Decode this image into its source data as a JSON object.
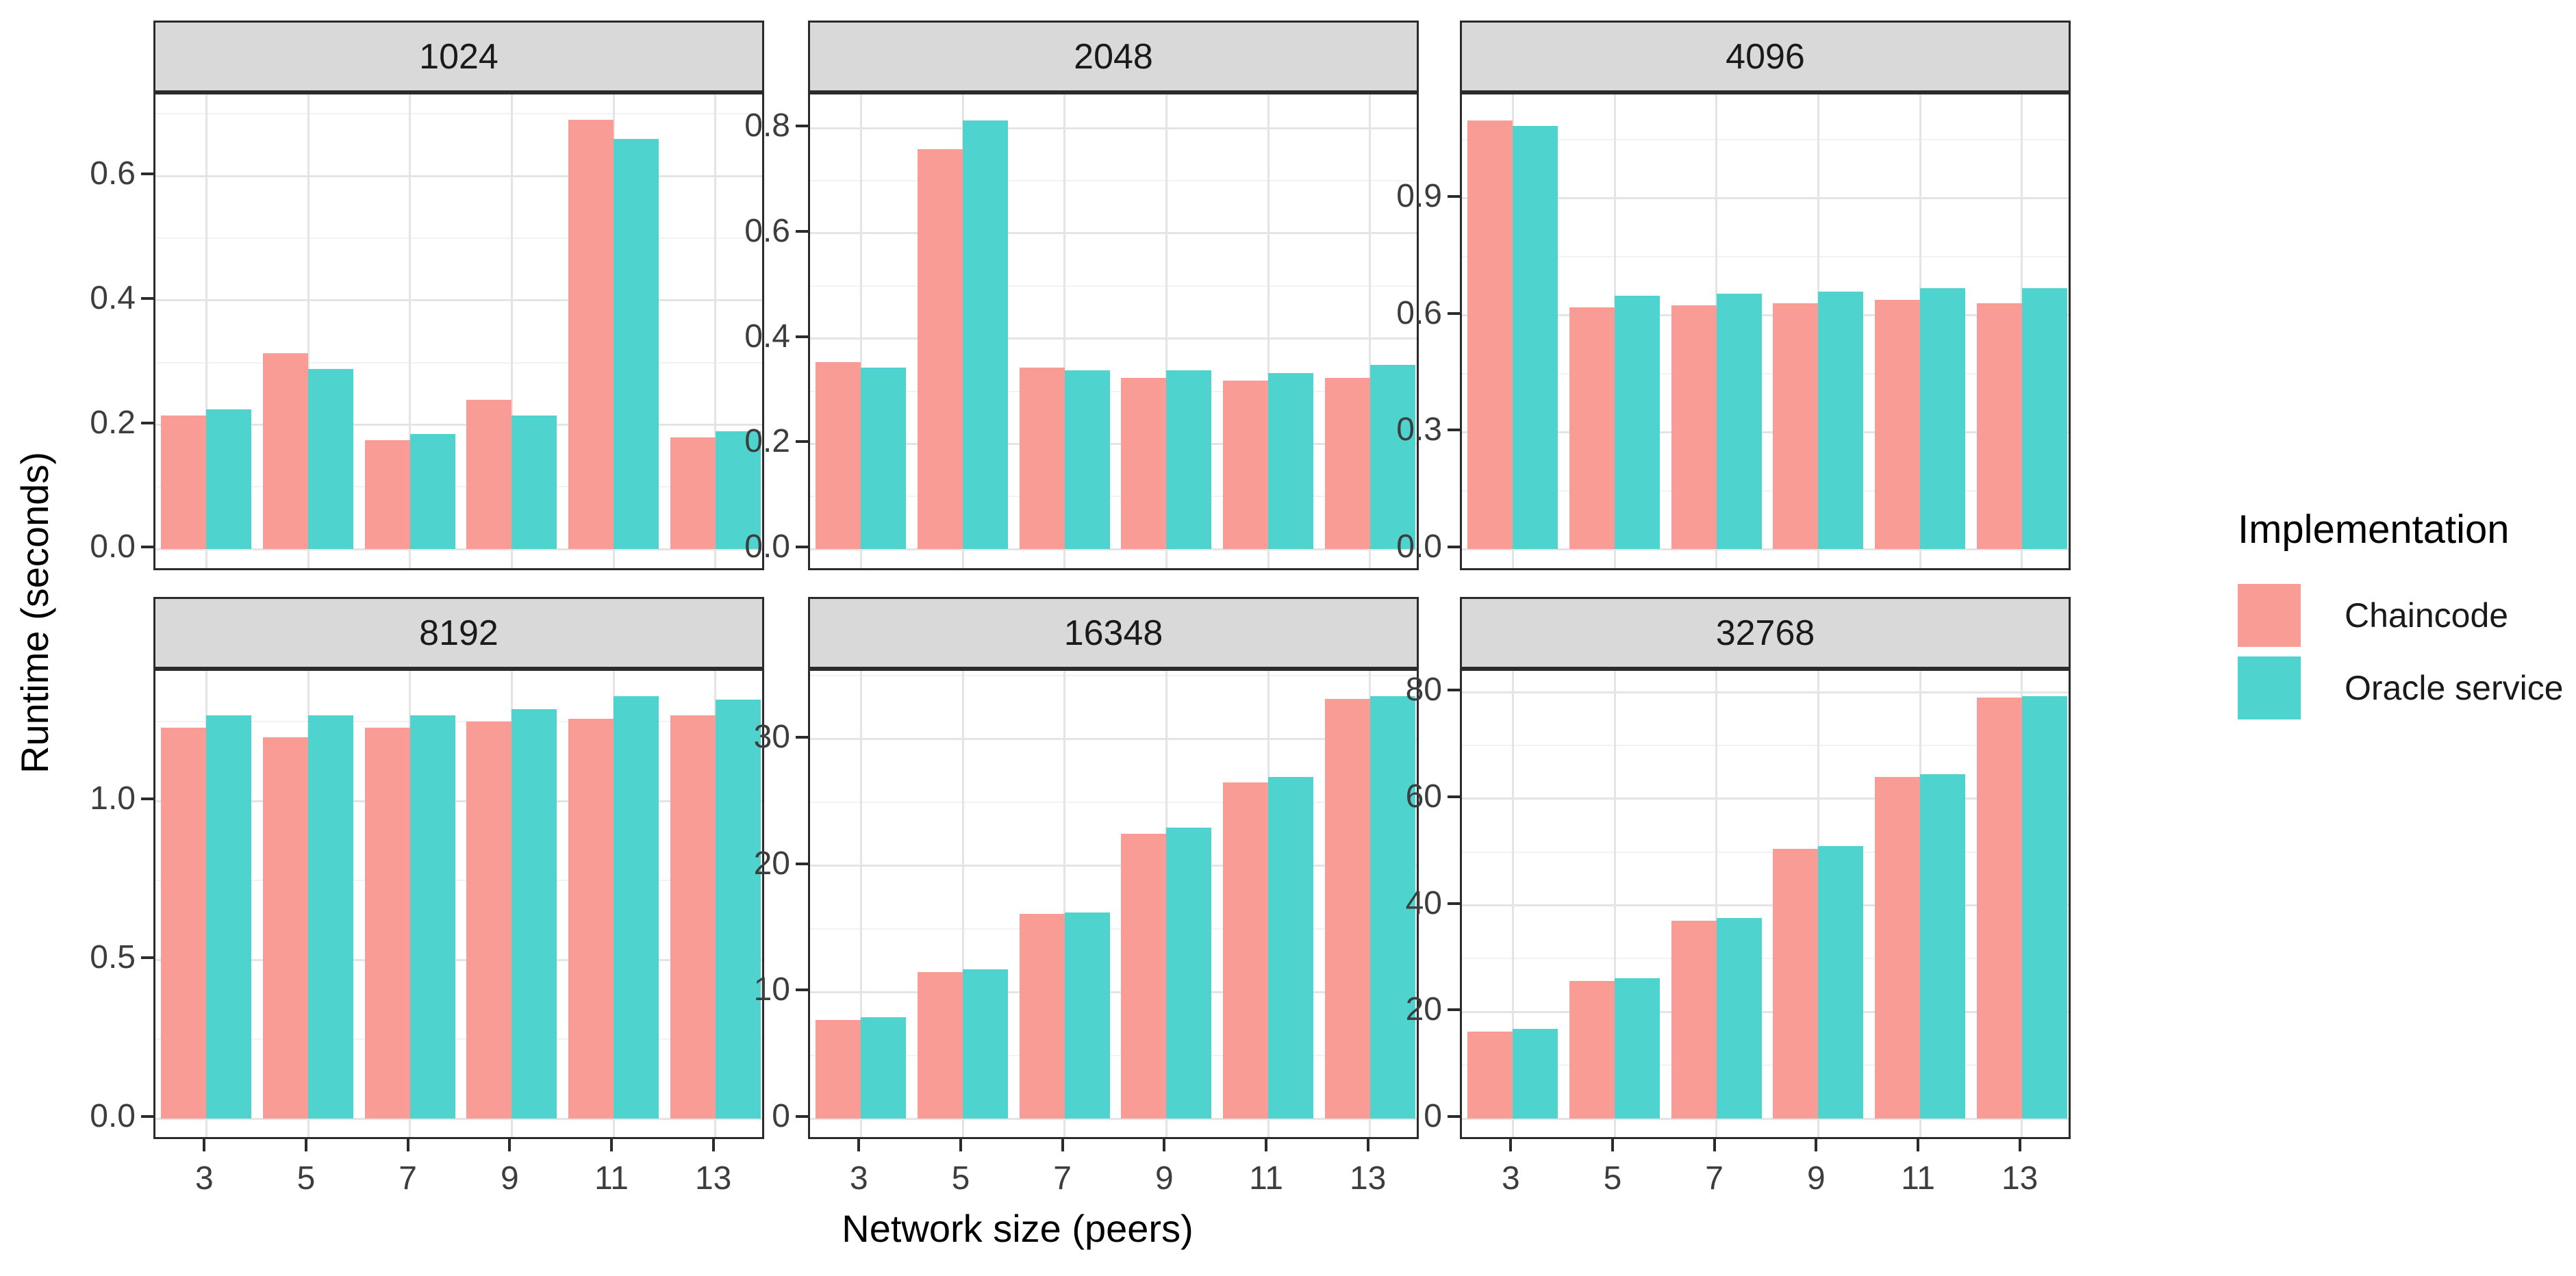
{
  "chart_data": {
    "type": "bar",
    "title": "",
    "xlabel": "Network size (peers)",
    "ylabel": "Runtime (seconds)",
    "legend_title": "Implementation",
    "legend_position": "right",
    "grid": true,
    "x_categories": [
      "3",
      "5",
      "7",
      "9",
      "11",
      "13"
    ],
    "series_names": [
      "Chaincode",
      "Oracle service"
    ],
    "colors": {
      "chaincode": "#F99C95",
      "oracle": "#4FD3CF"
    },
    "facets": [
      {
        "label": "1024",
        "ytick_labels": [
          "0.0",
          "0.2",
          "0.4",
          "0.6"
        ],
        "ytick_values": [
          0,
          0.2,
          0.4,
          0.6
        ],
        "ylim": [
          -0.037,
          0.731
        ],
        "chaincode": [
          0.215,
          0.315,
          0.175,
          0.24,
          0.69,
          0.18
        ],
        "oracle": [
          0.225,
          0.29,
          0.185,
          0.215,
          0.66,
          0.19
        ]
      },
      {
        "label": "2048",
        "ytick_labels": [
          "0.0",
          "0.2",
          "0.4",
          "0.6",
          "0.8"
        ],
        "ytick_values": [
          0,
          0.2,
          0.4,
          0.6,
          0.8
        ],
        "ylim": [
          -0.044,
          0.864
        ],
        "chaincode": [
          0.355,
          0.76,
          0.345,
          0.325,
          0.32,
          0.325
        ],
        "oracle": [
          0.345,
          0.815,
          0.34,
          0.34,
          0.335,
          0.35
        ]
      },
      {
        "label": "4096",
        "ytick_labels": [
          "0.0",
          "0.3",
          "0.6",
          "0.9"
        ],
        "ytick_values": [
          0,
          0.3,
          0.6,
          0.9
        ],
        "ylim": [
          -0.059,
          1.166
        ],
        "chaincode": [
          1.1,
          0.62,
          0.625,
          0.63,
          0.64,
          0.63
        ],
        "oracle": [
          1.085,
          0.65,
          0.655,
          0.66,
          0.67,
          0.67
        ]
      },
      {
        "label": "8192",
        "ytick_labels": [
          "0.0",
          "0.5",
          "1.0"
        ],
        "ytick_values": [
          0,
          0.5,
          1.0
        ],
        "ylim": [
          -0.071,
          1.41
        ],
        "chaincode": [
          1.23,
          1.2,
          1.23,
          1.25,
          1.26,
          1.27
        ],
        "oracle": [
          1.27,
          1.27,
          1.27,
          1.29,
          1.33,
          1.32
        ]
      },
      {
        "label": "16348",
        "ytick_labels": [
          "0",
          "10",
          "20",
          "30"
        ],
        "ytick_values": [
          0,
          10,
          20,
          30
        ],
        "ylim": [
          -1.78,
          35.4
        ],
        "chaincode": [
          7.8,
          11.6,
          16.2,
          22.5,
          26.6,
          33.2
        ],
        "oracle": [
          8.0,
          11.8,
          16.3,
          23.0,
          27.0,
          33.4
        ]
      },
      {
        "label": "32768",
        "ytick_labels": [
          "0",
          "20",
          "40",
          "60",
          "80"
        ],
        "ytick_values": [
          0,
          20,
          40,
          60,
          80
        ],
        "ylim": [
          -4.23,
          84.0
        ],
        "chaincode": [
          16.3,
          25.8,
          37.1,
          50.6,
          64.1,
          79.0
        ],
        "oracle": [
          16.8,
          26.3,
          37.6,
          51.1,
          64.6,
          79.2
        ]
      }
    ]
  },
  "style_colors": {
    "strip_background": "#D9D9D9",
    "panel_border": "#2b2b2b",
    "grid_major": "#E4E4E4",
    "grid_minor": "#F2F2F2",
    "tick_text": "#3d3d3d",
    "title_text": "#000000"
  }
}
